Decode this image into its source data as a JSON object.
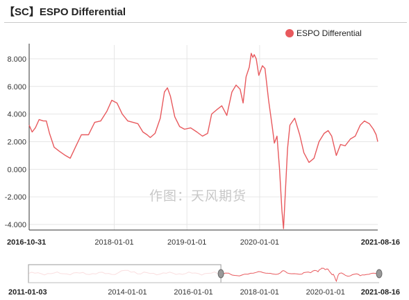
{
  "title": "【SC】ESPO Differential",
  "watermark": "作图：天风期货",
  "chart_data": {
    "type": "line",
    "title": "【SC】ESPO Differential",
    "ylim": [
      -4.4,
      9
    ],
    "yticks": [
      "8.000",
      "6.000",
      "4.000",
      "2.000",
      "0.000",
      "-2.000",
      "-4.000"
    ],
    "xlim": [
      "2016-10-31",
      "2021-08-16"
    ],
    "xticks": [
      "2016-10-31",
      "2018-01-01",
      "2019-01-01",
      "2020-01-01",
      "2021-08-16"
    ],
    "grid": true,
    "legend": "top-right",
    "series": [
      {
        "name": "ESPO Differential",
        "color": "#e8595d",
        "points": [
          [
            "2016-10-31",
            3.2
          ],
          [
            "2016-11-15",
            2.7
          ],
          [
            "2016-12-01",
            3.0
          ],
          [
            "2016-12-20",
            3.6
          ],
          [
            "2017-01-10",
            3.5
          ],
          [
            "2017-01-25",
            3.5
          ],
          [
            "2017-02-10",
            2.6
          ],
          [
            "2017-03-05",
            1.6
          ],
          [
            "2017-04-01",
            1.3
          ],
          [
            "2017-05-01",
            1.0
          ],
          [
            "2017-05-25",
            0.8
          ],
          [
            "2017-06-20",
            1.6
          ],
          [
            "2017-07-20",
            2.5
          ],
          [
            "2017-08-25",
            2.5
          ],
          [
            "2017-09-25",
            3.4
          ],
          [
            "2017-10-25",
            3.5
          ],
          [
            "2017-11-25",
            4.2
          ],
          [
            "2017-12-20",
            5.0
          ],
          [
            "2018-01-15",
            4.8
          ],
          [
            "2018-02-10",
            4.0
          ],
          [
            "2018-03-10",
            3.5
          ],
          [
            "2018-04-05",
            3.4
          ],
          [
            "2018-04-30",
            3.3
          ],
          [
            "2018-05-25",
            2.7
          ],
          [
            "2018-06-15",
            2.5
          ],
          [
            "2018-07-01",
            2.3
          ],
          [
            "2018-07-25",
            2.6
          ],
          [
            "2018-08-20",
            3.7
          ],
          [
            "2018-09-10",
            5.6
          ],
          [
            "2018-09-25",
            5.9
          ],
          [
            "2018-10-10",
            5.3
          ],
          [
            "2018-11-01",
            3.8
          ],
          [
            "2018-11-25",
            3.1
          ],
          [
            "2018-12-20",
            2.9
          ],
          [
            "2019-01-20",
            3.0
          ],
          [
            "2019-02-20",
            2.7
          ],
          [
            "2019-03-20",
            2.4
          ],
          [
            "2019-04-15",
            2.6
          ],
          [
            "2019-05-05",
            4.0
          ],
          [
            "2019-05-30",
            4.3
          ],
          [
            "2019-06-25",
            4.6
          ],
          [
            "2019-07-20",
            3.9
          ],
          [
            "2019-08-15",
            5.6
          ],
          [
            "2019-09-05",
            6.1
          ],
          [
            "2019-09-25",
            5.8
          ],
          [
            "2019-10-10",
            4.8
          ],
          [
            "2019-10-25",
            6.7
          ],
          [
            "2019-11-10",
            7.4
          ],
          [
            "2019-11-20",
            8.4
          ],
          [
            "2019-11-28",
            8.1
          ],
          [
            "2019-12-05",
            8.3
          ],
          [
            "2019-12-15",
            8.0
          ],
          [
            "2019-12-28",
            6.8
          ],
          [
            "2020-01-15",
            7.5
          ],
          [
            "2020-01-28",
            7.3
          ],
          [
            "2020-02-15",
            5.0
          ],
          [
            "2020-03-05",
            3.0
          ],
          [
            "2020-03-15",
            1.9
          ],
          [
            "2020-03-28",
            2.4
          ],
          [
            "2020-04-10",
            0.0
          ],
          [
            "2020-04-22",
            -3.0
          ],
          [
            "2020-04-30",
            -4.3
          ],
          [
            "2020-05-08",
            -2.0
          ],
          [
            "2020-05-20",
            1.5
          ],
          [
            "2020-06-01",
            3.2
          ],
          [
            "2020-06-25",
            3.7
          ],
          [
            "2020-07-20",
            2.5
          ],
          [
            "2020-08-10",
            1.2
          ],
          [
            "2020-09-05",
            0.5
          ],
          [
            "2020-09-30",
            0.8
          ],
          [
            "2020-10-25",
            2.0
          ],
          [
            "2020-11-20",
            2.6
          ],
          [
            "2020-12-10",
            2.8
          ],
          [
            "2020-12-28",
            2.4
          ],
          [
            "2021-01-20",
            1.0
          ],
          [
            "2021-02-10",
            1.8
          ],
          [
            "2021-03-05",
            1.7
          ],
          [
            "2021-04-01",
            2.2
          ],
          [
            "2021-04-25",
            2.4
          ],
          [
            "2021-05-20",
            3.2
          ],
          [
            "2021-06-10",
            3.5
          ],
          [
            "2021-07-05",
            3.3
          ],
          [
            "2021-07-25",
            2.9
          ],
          [
            "2021-08-08",
            2.5
          ],
          [
            "2021-08-16",
            2.0
          ]
        ]
      }
    ]
  },
  "navigator": {
    "xlim": [
      "2011-01-03",
      "2021-08-16"
    ],
    "labels": [
      "2011-01-03",
      "2014-01-01",
      "2016-01-01",
      "2018-01-01",
      "2020-01-01",
      "2021-08-16"
    ],
    "selection": [
      "2011-01-03",
      "2016-10-31"
    ]
  }
}
